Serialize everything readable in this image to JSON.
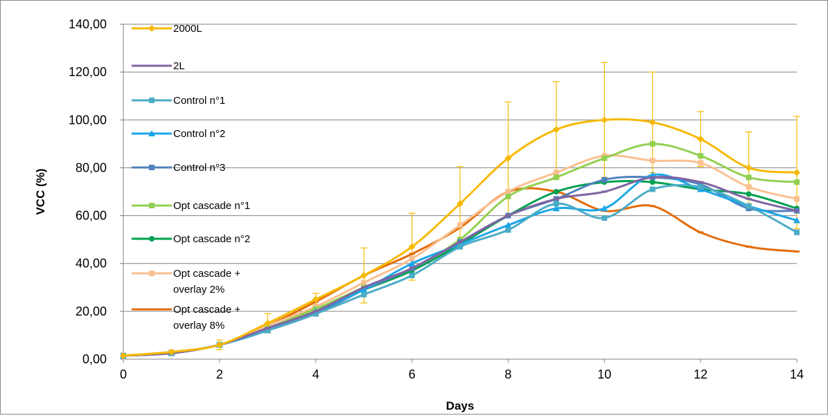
{
  "chart_data": {
    "type": "line",
    "title": "",
    "xlabel": "Days",
    "ylabel": "VCC (%)",
    "xlim": [
      0,
      14
    ],
    "ylim": [
      0,
      140
    ],
    "x_ticks": [
      "0",
      "2",
      "4",
      "6",
      "8",
      "10",
      "12",
      "14"
    ],
    "y_ticks": [
      "0,00",
      "20,00",
      "40,00",
      "60,00",
      "80,00",
      "100,00",
      "120,00",
      "140,00"
    ],
    "grid": "horizontal",
    "legend_position": "top-left",
    "x": [
      0,
      1,
      2,
      3,
      4,
      5,
      6,
      7,
      8,
      9,
      10,
      11,
      12,
      13,
      14
    ],
    "series": [
      {
        "name": "2000L",
        "color": "#F7B900",
        "marker": "diamond",
        "values": [
          1.5,
          3,
          6,
          15,
          25,
          35,
          47,
          65,
          84,
          96,
          100,
          99,
          92,
          80,
          78
        ],
        "error": [
          0,
          0,
          2,
          4,
          2.5,
          11.5,
          14,
          15.5,
          23.5,
          20,
          24,
          21,
          11.5,
          15,
          23.5
        ]
      },
      {
        "name": "2L",
        "color": "#8064A2",
        "marker": "dash",
        "values": [
          1.5,
          2.5,
          6,
          13,
          20,
          30,
          38,
          49,
          60,
          67,
          70,
          76,
          74,
          67,
          62
        ],
        "error": []
      },
      {
        "name": "Control n°1",
        "color": "#4BACC6",
        "marker": "square",
        "values": [
          1.5,
          2.5,
          6,
          12,
          19,
          27,
          35,
          47,
          54,
          65,
          59,
          71,
          72,
          64,
          53
        ],
        "error": []
      },
      {
        "name": "Control n°2",
        "color": "#1BA6E8",
        "marker": "triangle",
        "values": [
          1.5,
          2.5,
          6,
          12,
          20,
          29,
          40,
          48,
          56,
          63,
          63,
          77,
          71,
          64,
          58
        ],
        "error": []
      },
      {
        "name": "Control n°3",
        "color": "#4F81BD",
        "marker": "square",
        "values": [
          1.5,
          2.5,
          6,
          12,
          19,
          29,
          38,
          49,
          60,
          67,
          75,
          76,
          73,
          63,
          62
        ],
        "error": []
      },
      {
        "name": "Opt cascade n°1",
        "color": "#92D050",
        "marker": "square",
        "values": [
          1.5,
          2.5,
          6,
          13,
          21,
          30,
          38,
          50,
          68,
          76,
          84,
          90,
          85,
          76,
          74
        ],
        "error": []
      },
      {
        "name": "Opt cascade n°2",
        "color": "#00A050",
        "marker": "circle",
        "values": [
          1.5,
          2.5,
          6,
          13,
          21,
          29,
          37,
          48,
          60,
          70,
          74,
          74,
          71,
          69,
          63
        ],
        "error": []
      },
      {
        "name": "Opt cascade + overlay 2%",
        "color": "#FAC090",
        "marker": "square",
        "values": [
          1.5,
          3,
          6,
          14,
          22,
          32,
          42,
          56,
          70,
          78,
          85,
          83,
          82,
          72,
          67
        ],
        "error": []
      },
      {
        "name": "Opt cascade + overlay 8%",
        "color": "#E46C0A",
        "marker": "dash",
        "values": [
          1.5,
          3,
          6,
          14,
          24,
          35,
          44,
          55,
          70,
          70,
          62,
          64,
          53,
          47,
          45
        ],
        "error": []
      }
    ],
    "legend": [
      {
        "lines": [
          "2000L"
        ]
      },
      {
        "lines": [
          "2L"
        ]
      },
      {
        "lines": [
          "Control n°1"
        ]
      },
      {
        "lines": [
          "Control n°2"
        ]
      },
      {
        "lines": [
          "Control n°3"
        ]
      },
      {
        "lines": [
          "Opt cascade n°1"
        ]
      },
      {
        "lines": [
          "Opt cascade n°2"
        ]
      },
      {
        "lines": [
          "Opt cascade +",
          "overlay 2%"
        ]
      },
      {
        "lines": [
          "Opt cascade +",
          "overlay 8%"
        ]
      }
    ]
  }
}
